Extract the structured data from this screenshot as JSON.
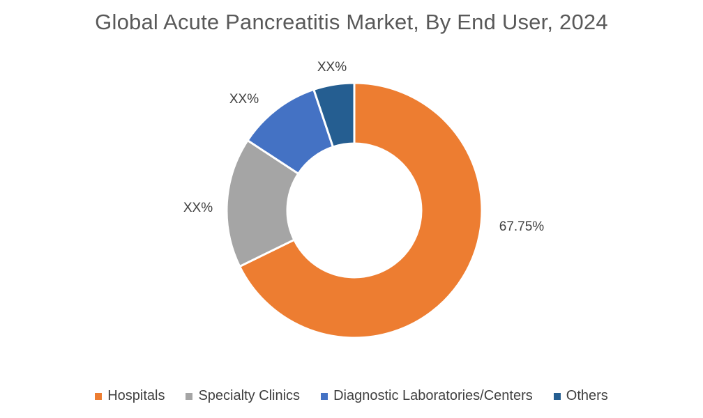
{
  "chart_data": {
    "type": "pie",
    "variant": "donut",
    "title": "Global Acute Pancreatitis Market, By End User, 2024",
    "categories": [
      "Hospitals",
      "Specialty Clinics",
      "Diagnostic Laboratories/Centers",
      "Others"
    ],
    "values": [
      67.75,
      16.5,
      10.6,
      5.15
    ],
    "data_labels": [
      "67.75%",
      "XX%",
      "XX%",
      "XX%"
    ],
    "colors": [
      "#ED7D31",
      "#A5A5A5",
      "#4472C4",
      "#255E91"
    ],
    "legend_position": "bottom"
  }
}
